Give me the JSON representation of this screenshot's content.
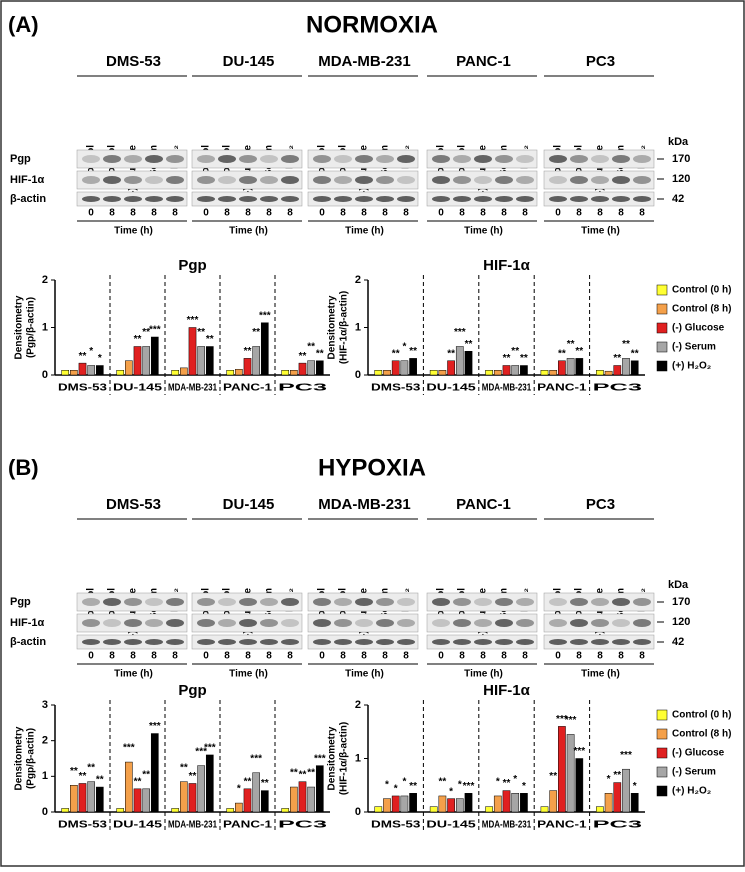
{
  "panels": [
    {
      "label": "(A)",
      "title": "NORMOXIA",
      "cell_lines": [
        "DMS-53",
        "DU-145",
        "MDA-MB-231",
        "PANC-1",
        "PC3"
      ],
      "lanes": [
        "Control",
        "Control",
        "(-) Glucose",
        "(-) Serum",
        "(+) H₂O₂"
      ],
      "times": [
        0,
        8,
        8,
        8,
        8
      ],
      "time_label": "Time (h)",
      "rows": [
        "Pgp",
        "HIF-1α",
        "β-actin"
      ],
      "kda_label": "kDa",
      "kda": [
        170,
        120,
        42
      ]
    },
    {
      "label": "(B)",
      "title": "HYPOXIA",
      "cell_lines": [
        "DMS-53",
        "DU-145",
        "MDA-MB-231",
        "PANC-1",
        "PC3"
      ],
      "lanes": [
        "Control",
        "Control",
        "(-) Glucose",
        "(-) Serum",
        "(+) H₂O₂"
      ],
      "times": [
        0,
        8,
        8,
        8,
        8
      ],
      "time_label": "Time (h)",
      "rows": [
        "Pgp",
        "HIF-1α",
        "β-actin"
      ],
      "kda_label": "kDa",
      "kda": [
        170,
        120,
        42
      ]
    }
  ],
  "chart_data": [
    {
      "type": "bar",
      "title": "Pgp",
      "ylabel": [
        "Densitometry",
        "(Pgp/β-actin)"
      ],
      "categories": [
        "DMS-53",
        "DU-145",
        "MDA-MB-231",
        "PANC-1",
        "PC3"
      ],
      "ylim": [
        0,
        2
      ],
      "yticks": [
        0,
        1,
        2
      ],
      "series": [
        {
          "name": "Control (0 h)",
          "color": "#ffff33",
          "values": [
            0.1,
            0.1,
            0.1,
            0.1,
            0.1
          ],
          "significance": [
            null,
            null,
            null,
            null,
            null
          ]
        },
        {
          "name": "Control (8 h)",
          "color": "#f4a04a",
          "values": [
            0.1,
            0.3,
            0.15,
            0.12,
            0.1
          ],
          "significance": [
            null,
            null,
            null,
            null,
            null
          ]
        },
        {
          "name": "(-) Glucose",
          "color": "#e02020",
          "values": [
            0.25,
            0.6,
            1.0,
            0.35,
            0.25
          ],
          "significance": [
            "**",
            "**",
            "***",
            "**",
            "**"
          ]
        },
        {
          "name": "(-) Serum",
          "color": "#a6a6a6",
          "values": [
            0.2,
            0.6,
            0.6,
            0.6,
            0.3
          ],
          "significance": [
            "*",
            "**",
            "**",
            "**",
            "**"
          ]
        },
        {
          "name": "(+) H₂O₂",
          "color": "#000000",
          "values": [
            0.2,
            0.8,
            0.6,
            1.1,
            0.3
          ],
          "significance": [
            "*",
            "***",
            "**",
            "***",
            "**"
          ]
        }
      ]
    },
    {
      "type": "bar",
      "title": "HIF-1α",
      "ylabel": [
        "Densitometry",
        "(HIF-1α/β-actin)"
      ],
      "categories": [
        "DMS-53",
        "DU-145",
        "MDA-MB-231",
        "PANC-1",
        "PC3"
      ],
      "ylim": [
        0,
        2
      ],
      "yticks": [
        0,
        1,
        2
      ],
      "legend": "right",
      "series": [
        {
          "name": "Control (0 h)",
          "color": "#ffff33",
          "values": [
            0.1,
            0.1,
            0.1,
            0.1,
            0.1
          ],
          "significance": [
            null,
            null,
            null,
            null,
            null
          ]
        },
        {
          "name": "Control (8 h)",
          "color": "#f4a04a",
          "values": [
            0.1,
            0.1,
            0.1,
            0.1,
            0.08
          ],
          "significance": [
            null,
            null,
            null,
            null,
            null
          ]
        },
        {
          "name": "(-) Glucose",
          "color": "#e02020",
          "values": [
            0.3,
            0.3,
            0.2,
            0.3,
            0.2
          ],
          "significance": [
            "**",
            "**",
            "**",
            "**",
            "**"
          ]
        },
        {
          "name": "(-) Serum",
          "color": "#a6a6a6",
          "values": [
            0.3,
            0.6,
            0.2,
            0.35,
            0.35
          ],
          "significance": [
            "*",
            "***",
            "**",
            "**",
            "**"
          ]
        },
        {
          "name": "(+) H₂O₂",
          "color": "#000000",
          "values": [
            0.35,
            0.5,
            0.2,
            0.35,
            0.3
          ],
          "significance": [
            "**",
            "**",
            "**",
            "**",
            "**"
          ]
        }
      ]
    },
    {
      "type": "bar",
      "title": "Pgp",
      "ylabel": [
        "Densitometry",
        "(Pgp/β-actin)"
      ],
      "categories": [
        "DMS-53",
        "DU-145",
        "MDA-MB-231",
        "PANC-1",
        "PC3"
      ],
      "ylim": [
        0,
        3
      ],
      "yticks": [
        0,
        1,
        2,
        3
      ],
      "series": [
        {
          "name": "Control (0 h)",
          "color": "#ffff33",
          "values": [
            0.1,
            0.1,
            0.1,
            0.1,
            0.1
          ],
          "significance": [
            null,
            null,
            null,
            null,
            null
          ]
        },
        {
          "name": "Control (8 h)",
          "color": "#f4a04a",
          "values": [
            0.75,
            1.4,
            0.85,
            0.25,
            0.7
          ],
          "significance": [
            "**",
            "***",
            "**",
            "*",
            "**"
          ]
        },
        {
          "name": "(-) Glucose",
          "color": "#e02020",
          "values": [
            0.8,
            0.65,
            0.8,
            0.65,
            0.85
          ],
          "significance": [
            "**",
            "**",
            "**",
            "**",
            "**"
          ]
        },
        {
          "name": "(-) Serum",
          "color": "#a6a6a6",
          "values": [
            0.85,
            0.65,
            1.3,
            1.1,
            0.7
          ],
          "significance": [
            "**",
            "**",
            "***",
            "***",
            "**"
          ]
        },
        {
          "name": "(+) H₂O₂",
          "color": "#000000",
          "values": [
            0.7,
            2.2,
            1.6,
            0.6,
            1.3
          ],
          "significance": [
            "**",
            "***",
            "***",
            "**",
            "***"
          ]
        }
      ]
    },
    {
      "type": "bar",
      "title": "HIF-1α",
      "ylabel": [
        "Densitometry",
        "(HIF-1α/β-actin)"
      ],
      "categories": [
        "DMS-53",
        "DU-145",
        "MDA-MB-231",
        "PANC-1",
        "PC3"
      ],
      "ylim": [
        0,
        2
      ],
      "yticks": [
        0,
        1,
        2
      ],
      "legend": "right",
      "series": [
        {
          "name": "Control (0 h)",
          "color": "#ffff33",
          "values": [
            0.1,
            0.1,
            0.1,
            0.1,
            0.1
          ],
          "significance": [
            null,
            null,
            null,
            null,
            null
          ]
        },
        {
          "name": "Control (8 h)",
          "color": "#f4a04a",
          "values": [
            0.25,
            0.3,
            0.3,
            0.4,
            0.35
          ],
          "significance": [
            "*",
            "**",
            "*",
            "**",
            "*"
          ]
        },
        {
          "name": "(-) Glucose",
          "color": "#e02020",
          "values": [
            0.3,
            0.25,
            0.4,
            1.6,
            0.55
          ],
          "significance": [
            "*",
            "*",
            "**",
            "***",
            "**"
          ]
        },
        {
          "name": "(-) Serum",
          "color": "#a6a6a6",
          "values": [
            0.3,
            0.25,
            0.35,
            1.45,
            0.8
          ],
          "significance": [
            "*",
            "*",
            "*",
            "***",
            "***"
          ]
        },
        {
          "name": "(+) H₂O₂",
          "color": "#000000",
          "values": [
            0.35,
            0.35,
            0.35,
            1.0,
            0.35
          ],
          "significance": [
            "**",
            "***",
            "*",
            "***",
            "*"
          ]
        }
      ]
    }
  ]
}
